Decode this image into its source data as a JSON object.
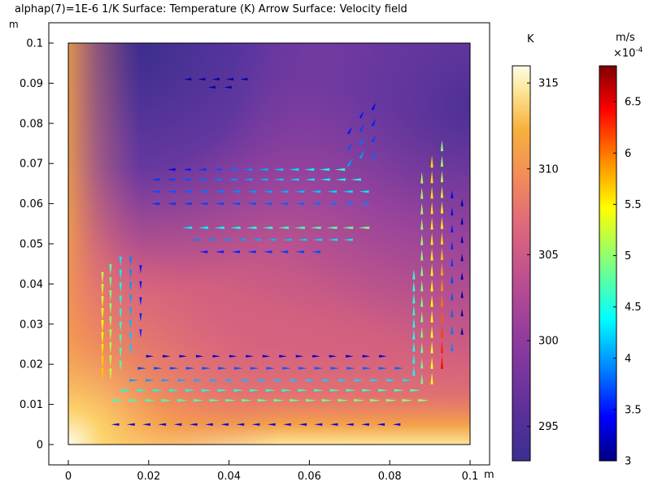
{
  "title": "alphap(7)=1E-6 1/K  Surface: Temperature (K)  Arrow Surface: Velocity field",
  "axis_unit": "m",
  "colors": {
    "frame": "#000000",
    "background": "#ffffff",
    "temperature_colormap": [
      "#3b2f8f",
      "#5a2f9a",
      "#8e3aa0",
      "#c0508f",
      "#e0697a",
      "#f28c5a",
      "#f7b13c",
      "#fde79a",
      "#fffbe6"
    ],
    "velocity_colormap": [
      "#00007f",
      "#0000ff",
      "#0080ff",
      "#00ffff",
      "#80ff80",
      "#ffff00",
      "#ff8000",
      "#ff0000",
      "#7f0000"
    ]
  },
  "chart_data": [
    {
      "type": "heatmap",
      "description_field": "Surface: Temperature (K)",
      "xlim": [
        0,
        0.1
      ],
      "ylim": [
        0,
        0.1
      ],
      "x_ticks": [
        {
          "value": 0,
          "label": "0"
        },
        {
          "value": 0.02,
          "label": "0.02"
        },
        {
          "value": 0.04,
          "label": "0.04"
        },
        {
          "value": 0.06,
          "label": "0.06"
        },
        {
          "value": 0.08,
          "label": "0.08"
        },
        {
          "value": 0.1,
          "label": "0.1"
        }
      ],
      "y_ticks": [
        {
          "value": 0,
          "label": "0"
        },
        {
          "value": 0.01,
          "label": "0.01"
        },
        {
          "value": 0.02,
          "label": "0.02"
        },
        {
          "value": 0.03,
          "label": "0.03"
        },
        {
          "value": 0.04,
          "label": "0.04"
        },
        {
          "value": 0.05,
          "label": "0.05"
        },
        {
          "value": 0.06,
          "label": "0.06"
        },
        {
          "value": 0.07,
          "label": "0.07"
        },
        {
          "value": 0.08,
          "label": "0.08"
        },
        {
          "value": 0.09,
          "label": "0.09"
        },
        {
          "value": 0.1,
          "label": "0.1"
        }
      ],
      "colorbar": {
        "unit": "K",
        "range": [
          293,
          316
        ],
        "ticks": [
          {
            "value": 295,
            "label": "295"
          },
          {
            "value": 300,
            "label": "300"
          },
          {
            "value": 305,
            "label": "305"
          },
          {
            "value": 310,
            "label": "310"
          },
          {
            "value": 315,
            "label": "315"
          }
        ]
      }
    },
    {
      "type": "scatter",
      "description_field": "Arrow Surface: Velocity field",
      "colorbar": {
        "unit": "m/s",
        "multiplier": "×10",
        "exponent": "-4",
        "range": [
          3.0,
          6.85
        ],
        "ticks": [
          {
            "value": 3,
            "label": "3"
          },
          {
            "value": 3.5,
            "label": "3.5"
          },
          {
            "value": 4,
            "label": "4"
          },
          {
            "value": 4.5,
            "label": "4.5"
          },
          {
            "value": 5,
            "label": "5"
          },
          {
            "value": 5.5,
            "label": "5.5"
          },
          {
            "value": 6,
            "label": "6"
          },
          {
            "value": 6.5,
            "label": "6.5"
          }
        ]
      },
      "arrow_rows": [
        {
          "y": 0.005,
          "x_from": 0.012,
          "x_to": 0.082,
          "dir": [
            -1,
            0
          ],
          "mag_from": 3.3,
          "mag_to": 3.3,
          "count": 19
        },
        {
          "y": 0.011,
          "x_from": 0.012,
          "x_to": 0.088,
          "dir": [
            1,
            0
          ],
          "mag_from": 4.6,
          "mag_to": 5.0,
          "count": 20
        },
        {
          "y": 0.0135,
          "x_from": 0.014,
          "x_to": 0.086,
          "dir": [
            1,
            0
          ],
          "mag_from": 4.4,
          "mag_to": 4.7,
          "count": 19
        },
        {
          "y": 0.016,
          "x_from": 0.016,
          "x_to": 0.084,
          "dir": [
            1,
            0
          ],
          "mag_from": 4.0,
          "mag_to": 4.3,
          "count": 18
        },
        {
          "y": 0.019,
          "x_from": 0.018,
          "x_to": 0.082,
          "dir": [
            1,
            0
          ],
          "mag_from": 3.7,
          "mag_to": 3.8,
          "count": 17
        },
        {
          "y": 0.022,
          "x_from": 0.02,
          "x_to": 0.078,
          "dir": [
            1,
            0
          ],
          "mag_from": 3.3,
          "mag_to": 3.3,
          "count": 15
        },
        {
          "y": 0.06,
          "x_from": 0.022,
          "x_to": 0.074,
          "dir": [
            -1,
            0
          ],
          "mag_from": 3.6,
          "mag_to": 3.9,
          "count": 14
        },
        {
          "y": 0.063,
          "x_from": 0.022,
          "x_to": 0.074,
          "dir": [
            -1,
            0
          ],
          "mag_from": 3.7,
          "mag_to": 4.3,
          "count": 14
        },
        {
          "y": 0.066,
          "x_from": 0.022,
          "x_to": 0.072,
          "dir": [
            -1,
            0
          ],
          "mag_from": 3.6,
          "mag_to": 4.5,
          "count": 14
        },
        {
          "y": 0.0685,
          "x_from": 0.026,
          "x_to": 0.068,
          "dir": [
            -1,
            0
          ],
          "mag_from": 3.4,
          "mag_to": 4.6,
          "count": 12
        },
        {
          "y": 0.054,
          "x_from": 0.03,
          "x_to": 0.074,
          "dir": [
            -1,
            0
          ],
          "mag_from": 4.3,
          "mag_to": 4.9,
          "count": 12
        },
        {
          "y": 0.051,
          "x_from": 0.032,
          "x_to": 0.07,
          "dir": [
            -1,
            0
          ],
          "mag_from": 3.9,
          "mag_to": 4.3,
          "count": 11
        },
        {
          "y": 0.048,
          "x_from": 0.034,
          "x_to": 0.062,
          "dir": [
            -1,
            0
          ],
          "mag_from": 3.5,
          "mag_to": 3.7,
          "count": 8
        },
        {
          "y": 0.091,
          "x_from": 0.03,
          "x_to": 0.044,
          "dir": [
            -1,
            0
          ],
          "mag_from": 3.1,
          "mag_to": 3.1,
          "count": 5
        },
        {
          "y": 0.089,
          "x_from": 0.036,
          "x_to": 0.04,
          "dir": [
            -1,
            0
          ],
          "mag_from": 3.1,
          "mag_to": 3.1,
          "count": 2
        }
      ],
      "arrow_columns": [
        {
          "x": 0.0085,
          "y_from": 0.018,
          "y_to": 0.042,
          "dir": [
            0,
            -1
          ],
          "mag_from": 5.7,
          "mag_to": 5.2,
          "count": 9
        },
        {
          "x": 0.0105,
          "y_from": 0.018,
          "y_to": 0.044,
          "dir": [
            0,
            -1
          ],
          "mag_from": 5.2,
          "mag_to": 4.8,
          "count": 9
        },
        {
          "x": 0.013,
          "y_from": 0.02,
          "y_to": 0.046,
          "dir": [
            0,
            -1
          ],
          "mag_from": 4.7,
          "mag_to": 4.3,
          "count": 9
        },
        {
          "x": 0.0155,
          "y_from": 0.024,
          "y_to": 0.046,
          "dir": [
            0,
            -1
          ],
          "mag_from": 4.2,
          "mag_to": 3.9,
          "count": 8
        },
        {
          "x": 0.018,
          "y_from": 0.028,
          "y_to": 0.044,
          "dir": [
            0,
            -1
          ],
          "mag_from": 3.6,
          "mag_to": 3.5,
          "count": 5
        },
        {
          "x": 0.086,
          "y_from": 0.018,
          "y_to": 0.042,
          "dir": [
            0,
            1
          ],
          "mag_from": 4.4,
          "mag_to": 4.6,
          "count": 9
        },
        {
          "x": 0.088,
          "y_from": 0.016,
          "y_to": 0.066,
          "dir": [
            0,
            1
          ],
          "mag_from": 4.8,
          "mag_to": 5.1,
          "count": 14
        },
        {
          "x": 0.0905,
          "y_from": 0.016,
          "y_to": 0.07,
          "dir": [
            0,
            1
          ],
          "mag_from": 5.4,
          "mag_to": 5.6,
          "count": 15
        },
        {
          "x": 0.093,
          "y_from": 0.02,
          "y_to": 0.074,
          "dir": [
            0,
            1
          ],
          "mag_from": 6.4,
          "mag_to": 5.0,
          "count": 15
        },
        {
          "x": 0.0955,
          "y_from": 0.024,
          "y_to": 0.062,
          "dir": [
            0,
            1
          ],
          "mag_from": 3.9,
          "mag_to": 3.4,
          "count": 10
        },
        {
          "x": 0.098,
          "y_from": 0.028,
          "y_to": 0.06,
          "dir": [
            0,
            1
          ],
          "mag_from": 3.1,
          "mag_to": 3.1,
          "count": 8
        },
        {
          "x": 0.073,
          "y_from": 0.072,
          "y_to": 0.082,
          "dir": [
            0.5,
            1
          ],
          "mag_from": 4.0,
          "mag_to": 3.5,
          "count": 4
        },
        {
          "x": 0.076,
          "y_from": 0.072,
          "y_to": 0.084,
          "dir": [
            0.5,
            1
          ],
          "mag_from": 3.8,
          "mag_to": 3.4,
          "count": 4
        },
        {
          "x": 0.07,
          "y_from": 0.07,
          "y_to": 0.078,
          "dir": [
            0.6,
            1
          ],
          "mag_from": 4.0,
          "mag_to": 3.5,
          "count": 3
        }
      ]
    }
  ]
}
